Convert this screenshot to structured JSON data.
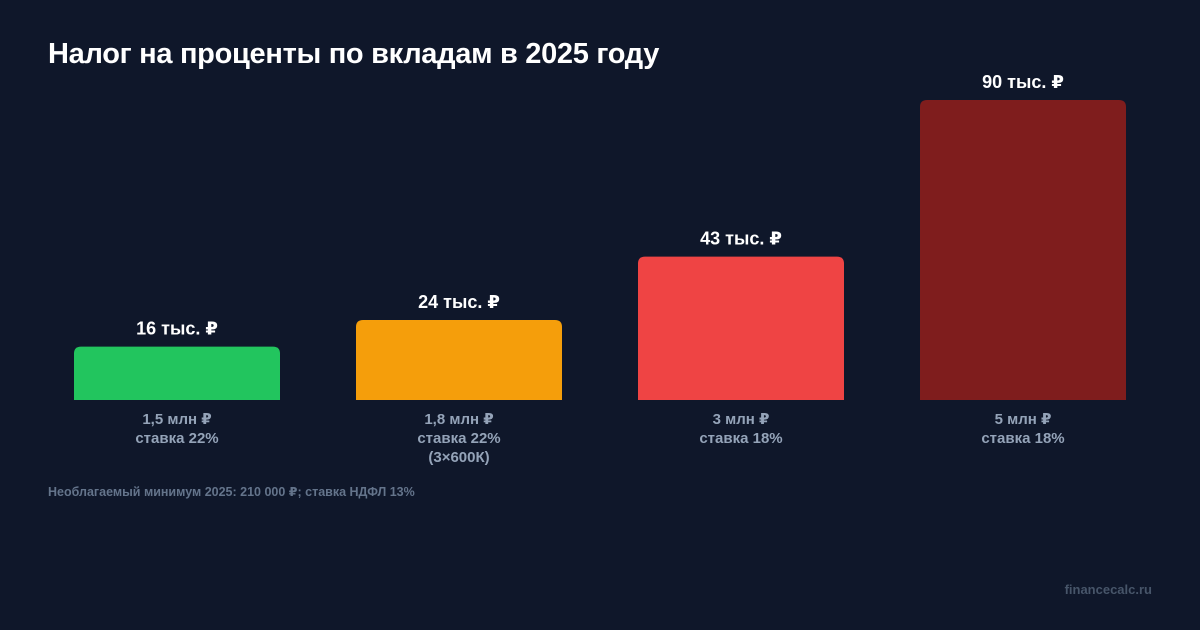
{
  "chart_data": {
    "type": "bar",
    "title": "Налог на проценты по вкладам в 2025 году",
    "categories": [
      [
        "1,5 млн ₽",
        "ставка 22%"
      ],
      [
        "1,8 млн ₽",
        "ставка 22%",
        "(3×600К)"
      ],
      [
        "3 млн ₽",
        "ставка 18%"
      ],
      [
        "5 млн ₽",
        "ставка 18%"
      ]
    ],
    "values": [
      16,
      24,
      43,
      90
    ],
    "value_labels": [
      "16 тыс. ₽",
      "24 тыс. ₽",
      "43 тыс. ₽",
      "90 тыс. ₽"
    ],
    "colors": [
      "#22c55e",
      "#f59e0b",
      "#ef4444",
      "#7f1d1d"
    ],
    "unit": "тыс. ₽",
    "ylim": [
      0,
      90
    ],
    "grid": false,
    "legend": "none"
  },
  "footnote": "Необлагаемый минимум 2025: 210 000 ₽; ставка НДФЛ 13%",
  "source": "financecalc.ru"
}
